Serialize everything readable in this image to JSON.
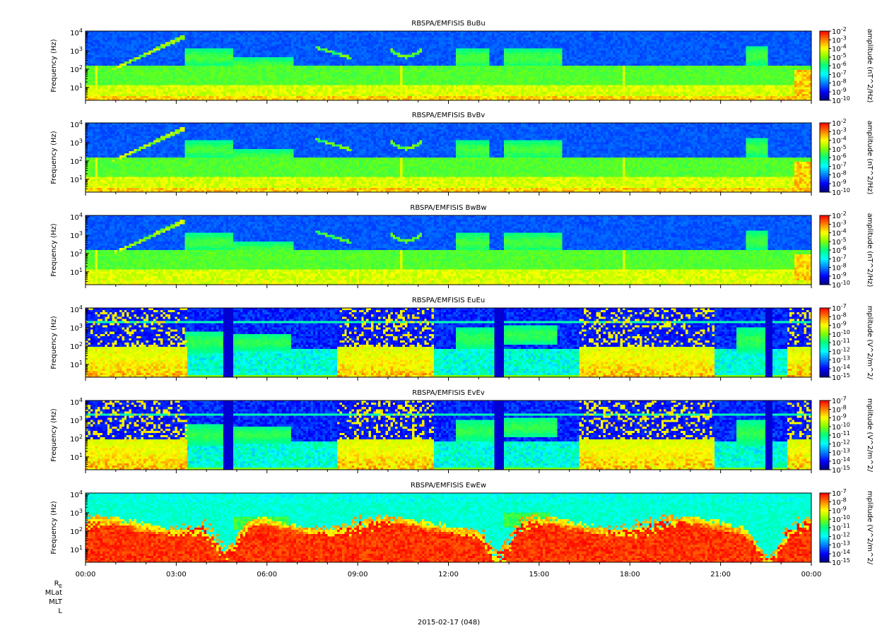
{
  "chart_data": {
    "type": "heatmap",
    "date_label": "2015-02-17 (048)",
    "x_axis": {
      "ticks": [
        "00:00",
        "03:00",
        "06:00",
        "09:00",
        "12:00",
        "15:00",
        "18:00",
        "21:00",
        "00:00"
      ],
      "range_hours": [
        0,
        24
      ]
    },
    "orbit_labels": [
      "R",
      "MLat",
      "MLT",
      "L"
    ],
    "orbit_label_subscript": "E",
    "panels": [
      {
        "title": "RBSPA/EMFISIS  BuBu",
        "ylabel": "Frequency (Hz)",
        "yscale": "log",
        "ylim": [
          2,
          12000
        ],
        "colorbar_label": "amplitude (nT^2/Hz)",
        "colorbar_ticks": [
          "10^-2",
          "10^-3",
          "10^-4",
          "10^-5",
          "10^-6",
          "10^-7",
          "10^-8",
          "10^-9",
          "10^-10"
        ],
        "colorbar_range_log": [
          -10,
          -2
        ],
        "style": "B"
      },
      {
        "title": "RBSPA/EMFISIS  BvBv",
        "ylabel": "Frequency (Hz)",
        "yscale": "log",
        "ylim": [
          2,
          12000
        ],
        "colorbar_label": "amplitude (nT^2/Hz)",
        "colorbar_ticks": [
          "10^-2",
          "10^-3",
          "10^-4",
          "10^-5",
          "10^-6",
          "10^-7",
          "10^-8",
          "10^-9",
          "10^-10"
        ],
        "colorbar_range_log": [
          -10,
          -2
        ],
        "style": "B"
      },
      {
        "title": "RBSPA/EMFISIS  BwBw",
        "ylabel": "Frequency (Hz)",
        "yscale": "log",
        "ylim": [
          2,
          12000
        ],
        "colorbar_label": "amplitude (nT^2/Hz)",
        "colorbar_ticks": [
          "10^-2",
          "10^-3",
          "10^-4",
          "10^-5",
          "10^-6",
          "10^-7",
          "10^-8",
          "10^-9",
          "10^-10"
        ],
        "colorbar_range_log": [
          -10,
          -2
        ],
        "style": "Bw"
      },
      {
        "title": "RBSPA/EMFISIS  EuEu",
        "ylabel": "Frequency (Hz)",
        "yscale": "log",
        "ylim": [
          2,
          12000
        ],
        "colorbar_label": "mplitude (V^2/m^2/",
        "colorbar_ticks": [
          "10^-7",
          "10^-8",
          "10^-9",
          "10^-10",
          "10^-11",
          "10^-12",
          "10^-13",
          "10^-14",
          "10^-15"
        ],
        "colorbar_range_log": [
          -15,
          -7
        ],
        "style": "E"
      },
      {
        "title": "RBSPA/EMFISIS  EvEv",
        "ylabel": "Frequency (Hz)",
        "yscale": "log",
        "ylim": [
          2,
          12000
        ],
        "colorbar_label": "mplitude (V^2/m^2/",
        "colorbar_ticks": [
          "10^-7",
          "10^-8",
          "10^-9",
          "10^-10",
          "10^-11",
          "10^-12",
          "10^-13",
          "10^-14",
          "10^-15"
        ],
        "colorbar_range_log": [
          -15,
          -7
        ],
        "style": "E"
      },
      {
        "title": "RBSPA/EMFISIS  EwEw",
        "ylabel": "Frequency (Hz)",
        "yscale": "log",
        "ylim": [
          2,
          12000
        ],
        "colorbar_label": "mplitude (V^2/m^2/",
        "colorbar_ticks": [
          "10^-7",
          "10^-8",
          "10^-9",
          "10^-10",
          "10^-11",
          "10^-12",
          "10^-13",
          "10^-14",
          "10^-15"
        ],
        "colorbar_range_log": [
          -15,
          -7
        ],
        "style": "Ew"
      }
    ],
    "y_tick_labels": [
      "10^1",
      "10^2",
      "10^3",
      "10^4"
    ],
    "colormap": [
      "#000080",
      "#0000ff",
      "#0080ff",
      "#00ffff",
      "#00ff80",
      "#80ff00",
      "#ffff00",
      "#ff8000",
      "#ff0000"
    ]
  }
}
